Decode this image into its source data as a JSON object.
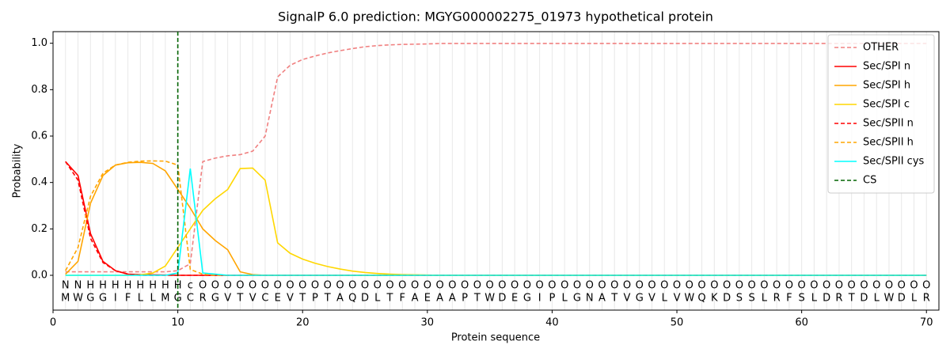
{
  "chart_data": {
    "type": "line",
    "title": "SignalP 6.0 prediction: MGYG000002275_01973 hypothetical protein",
    "xlabel": "Protein sequence",
    "ylabel": "Probability",
    "x": [
      1,
      2,
      3,
      4,
      5,
      6,
      7,
      8,
      9,
      10,
      11,
      12,
      13,
      14,
      15,
      16,
      17,
      18,
      19,
      20,
      21,
      22,
      23,
      24,
      25,
      26,
      27,
      28,
      29,
      30,
      31,
      32,
      33,
      34,
      35,
      36,
      37,
      38,
      39,
      40,
      41,
      42,
      43,
      44,
      45,
      46,
      47,
      48,
      49,
      50,
      51,
      52,
      53,
      54,
      55,
      56,
      57,
      58,
      59,
      60,
      61,
      62,
      63,
      64,
      65,
      66,
      67,
      68,
      69,
      70
    ],
    "sequence": [
      "M",
      "W",
      "G",
      "G",
      "I",
      "F",
      "L",
      "L",
      "M",
      "G",
      "C",
      "R",
      "G",
      "V",
      "T",
      "V",
      "C",
      "E",
      "V",
      "T",
      "P",
      "T",
      "A",
      "Q",
      "D",
      "L",
      "T",
      "F",
      "A",
      "E",
      "A",
      "A",
      "P",
      "T",
      "W",
      "D",
      "E",
      "G",
      "I",
      "P",
      "L",
      "G",
      "N",
      "A",
      "T",
      "V",
      "G",
      "V",
      "L",
      "V",
      "W",
      "Q",
      "K",
      "D",
      "S",
      "S",
      "L",
      "R",
      "F",
      "S",
      "L",
      "D",
      "R",
      "T",
      "D",
      "L",
      "W",
      "D",
      "L",
      "R"
    ],
    "labels": [
      "N",
      "N",
      "H",
      "H",
      "H",
      "H",
      "H",
      "H",
      "H",
      "H",
      "c",
      "O",
      "O",
      "O",
      "O",
      "O",
      "O",
      "O",
      "O",
      "O",
      "O",
      "O",
      "O",
      "O",
      "O",
      "O",
      "O",
      "O",
      "O",
      "O",
      "O",
      "O",
      "O",
      "O",
      "O",
      "O",
      "O",
      "O",
      "O",
      "O",
      "O",
      "O",
      "O",
      "O",
      "O",
      "O",
      "O",
      "O",
      "O",
      "O",
      "O",
      "O",
      "O",
      "O",
      "O",
      "O",
      "O",
      "O",
      "O",
      "O",
      "O",
      "O",
      "O",
      "O",
      "O",
      "O",
      "O",
      "O",
      "O",
      "O"
    ],
    "label_colors": {
      "N": "#ff0000",
      "H": "#ffa500",
      "c": "#00e5e5",
      "O": "#808080"
    },
    "series": [
      {
        "name": "OTHER",
        "color": "#f08080",
        "dashed": true,
        "values": [
          0.015,
          0.015,
          0.015,
          0.015,
          0.015,
          0.015,
          0.015,
          0.015,
          0.015,
          0.02,
          0.05,
          0.49,
          0.505,
          0.515,
          0.52,
          0.535,
          0.6,
          0.855,
          0.905,
          0.93,
          0.945,
          0.958,
          0.968,
          0.977,
          0.985,
          0.99,
          0.993,
          0.995,
          0.996,
          0.997,
          0.999,
          0.999,
          0.999,
          0.999,
          0.999,
          0.999,
          0.999,
          0.999,
          0.999,
          0.999,
          0.999,
          0.999,
          0.999,
          0.999,
          0.999,
          0.999,
          0.999,
          0.999,
          0.999,
          0.999,
          0.999,
          0.999,
          0.999,
          0.999,
          0.999,
          0.999,
          0.999,
          0.999,
          0.999,
          0.999,
          0.999,
          0.999,
          0.999,
          0.999,
          0.999,
          0.999,
          0.999,
          0.999,
          0.999,
          0.999
        ]
      },
      {
        "name": "Sec/SPI n",
        "color": "#ff0000",
        "dashed": false,
        "values": [
          0.49,
          0.43,
          0.18,
          0.06,
          0.02,
          0.005,
          0.003,
          0.002,
          0.001,
          0,
          0,
          0,
          0,
          0,
          0,
          0,
          0,
          0,
          0,
          0,
          0,
          0,
          0,
          0,
          0,
          0,
          0,
          0,
          0,
          0,
          0,
          0,
          0,
          0,
          0,
          0,
          0,
          0,
          0,
          0,
          0,
          0,
          0,
          0,
          0,
          0,
          0,
          0,
          0,
          0,
          0,
          0,
          0,
          0,
          0,
          0,
          0,
          0,
          0,
          0,
          0,
          0,
          0,
          0,
          0,
          0,
          0,
          0,
          0,
          0
        ]
      },
      {
        "name": "Sec/SPI h",
        "color": "#ffa500",
        "dashed": false,
        "values": [
          0.005,
          0.06,
          0.31,
          0.43,
          0.475,
          0.485,
          0.487,
          0.482,
          0.45,
          0.37,
          0.29,
          0.2,
          0.15,
          0.11,
          0.015,
          0.003,
          0,
          0,
          0,
          0,
          0,
          0,
          0,
          0,
          0,
          0,
          0,
          0,
          0,
          0,
          0,
          0,
          0,
          0,
          0,
          0,
          0,
          0,
          0,
          0,
          0,
          0,
          0,
          0,
          0,
          0,
          0,
          0,
          0,
          0,
          0,
          0,
          0,
          0,
          0,
          0,
          0,
          0,
          0,
          0,
          0,
          0,
          0,
          0,
          0,
          0,
          0,
          0,
          0,
          0
        ]
      },
      {
        "name": "Sec/SPI c",
        "color": "#ffd700",
        "dashed": false,
        "values": [
          0,
          0,
          0,
          0,
          0,
          0,
          0.002,
          0.01,
          0.04,
          0.12,
          0.2,
          0.28,
          0.33,
          0.37,
          0.46,
          0.462,
          0.41,
          0.14,
          0.095,
          0.07,
          0.052,
          0.038,
          0.027,
          0.018,
          0.012,
          0.008,
          0.005,
          0.003,
          0.002,
          0.001,
          0,
          0,
          0,
          0,
          0,
          0,
          0,
          0,
          0,
          0,
          0,
          0,
          0,
          0,
          0,
          0,
          0,
          0,
          0,
          0,
          0,
          0,
          0,
          0,
          0,
          0,
          0,
          0,
          0,
          0,
          0,
          0,
          0,
          0,
          0,
          0,
          0,
          0,
          0,
          0
        ]
      },
      {
        "name": "Sec/SPII n",
        "color": "#ff0000",
        "dashed": true,
        "values": [
          0.49,
          0.41,
          0.16,
          0.055,
          0.02,
          0.005,
          0,
          0,
          0,
          0,
          0,
          0,
          0,
          0,
          0,
          0,
          0,
          0,
          0,
          0,
          0,
          0,
          0,
          0,
          0,
          0,
          0,
          0,
          0,
          0,
          0,
          0,
          0,
          0,
          0,
          0,
          0,
          0,
          0,
          0,
          0,
          0,
          0,
          0,
          0,
          0,
          0,
          0,
          0,
          0,
          0,
          0,
          0,
          0,
          0,
          0,
          0,
          0,
          0,
          0,
          0,
          0,
          0,
          0,
          0,
          0,
          0,
          0,
          0,
          0
        ]
      },
      {
        "name": "Sec/SPII h",
        "color": "#ffa500",
        "dashed": true,
        "values": [
          0.02,
          0.12,
          0.34,
          0.44,
          0.475,
          0.487,
          0.492,
          0.493,
          0.492,
          0.475,
          0.025,
          0.005,
          0,
          0,
          0,
          0,
          0,
          0,
          0,
          0,
          0,
          0,
          0,
          0,
          0,
          0,
          0,
          0,
          0,
          0,
          0,
          0,
          0,
          0,
          0,
          0,
          0,
          0,
          0,
          0,
          0,
          0,
          0,
          0,
          0,
          0,
          0,
          0,
          0,
          0,
          0,
          0,
          0,
          0,
          0,
          0,
          0,
          0,
          0,
          0,
          0,
          0,
          0,
          0,
          0,
          0,
          0,
          0,
          0,
          0
        ]
      },
      {
        "name": "Sec/SPII cys",
        "color": "#00ffff",
        "dashed": false,
        "values": [
          0,
          0,
          0,
          0,
          0,
          0,
          0,
          0,
          0,
          0.01,
          0.46,
          0.01,
          0.005,
          0,
          0,
          0,
          0,
          0,
          0,
          0,
          0,
          0,
          0,
          0,
          0,
          0,
          0,
          0,
          0,
          0,
          0,
          0,
          0,
          0,
          0,
          0,
          0,
          0,
          0,
          0,
          0,
          0,
          0,
          0,
          0,
          0,
          0,
          0,
          0,
          0,
          0,
          0,
          0,
          0,
          0,
          0,
          0,
          0,
          0,
          0,
          0,
          0,
          0,
          0,
          0,
          0,
          0,
          0,
          0,
          0
        ]
      }
    ],
    "cs": {
      "name": "CS",
      "color": "#006400",
      "x": 10
    },
    "xlim": [
      0,
      71
    ],
    "ylim": [
      -0.15,
      1.05
    ],
    "xticks": [
      0,
      10,
      20,
      30,
      40,
      50,
      60,
      70
    ],
    "yticks": [
      {
        "value": 0,
        "label": "0.0"
      },
      {
        "value": 0.2,
        "label": "0.2"
      },
      {
        "value": 0.4,
        "label": "0.4"
      },
      {
        "value": 0.6,
        "label": "0.6"
      },
      {
        "value": 0.8,
        "label": "0.8"
      },
      {
        "value": 1,
        "label": "1.0"
      }
    ],
    "grid": true,
    "legend": "upper right"
  }
}
